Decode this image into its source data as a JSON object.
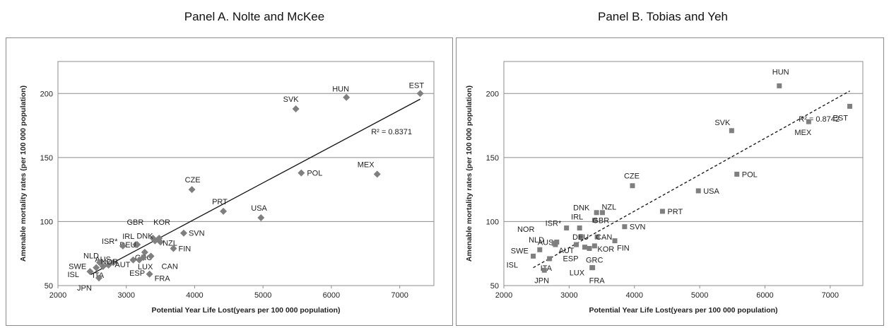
{
  "chart_data": [
    {
      "type": "scatter",
      "title": "Panel A. Nolte and McKee",
      "xlabel": "Potential Year Life Lost(years per 100 000 population)",
      "ylabel": "Amenable mortality rates (per 100 000 population)",
      "xlim": [
        2000,
        7500
      ],
      "ylim": [
        50,
        225
      ],
      "xticks": [
        2000,
        3000,
        4000,
        5000,
        6000,
        7000
      ],
      "yticks": [
        50,
        100,
        150,
        200
      ],
      "grid": "horizontal",
      "marker": "diamond",
      "marker_color": "#7f7f7f",
      "r2_label": "R² = 0.8371",
      "trendline": {
        "style": "solid",
        "x": [
          2480,
          7300
        ],
        "y": [
          58.6,
          195.6
        ]
      },
      "points": [
        {
          "label": "EST",
          "x": 7300,
          "y": 200
        },
        {
          "label": "HUN",
          "x": 6220,
          "y": 197
        },
        {
          "label": "SVK",
          "x": 5480,
          "y": 188
        },
        {
          "label": "MEX",
          "x": 6670,
          "y": 137
        },
        {
          "label": "POL",
          "x": 5560,
          "y": 138
        },
        {
          "label": "CZE",
          "x": 3960,
          "y": 125
        },
        {
          "label": "PRT",
          "x": 4420,
          "y": 108
        },
        {
          "label": "USA",
          "x": 4970,
          "y": 103
        },
        {
          "label": "SVN",
          "x": 3840,
          "y": 91
        },
        {
          "label": "GBR",
          "x": 3390,
          "y": 87
        },
        {
          "label": "KOR",
          "x": 3480,
          "y": 87
        },
        {
          "label": "DNK",
          "x": 3420,
          "y": 85
        },
        {
          "label": "NZL",
          "x": 3500,
          "y": 84
        },
        {
          "label": "IRL",
          "x": 3160,
          "y": 82
        },
        {
          "label": "DEU",
          "x": 3140,
          "y": 82
        },
        {
          "label": "ISR*",
          "x": 2950,
          "y": 81
        },
        {
          "label": "FIN",
          "x": 3690,
          "y": 79
        },
        {
          "label": "GRC",
          "x": 3270,
          "y": 76
        },
        {
          "label": "CAN",
          "x": 3360,
          "y": 73
        },
        {
          "label": "LUX",
          "x": 3250,
          "y": 72
        },
        {
          "label": "AUT",
          "x": 3100,
          "y": 70
        },
        {
          "label": "ESP",
          "x": 3190,
          "y": 70
        },
        {
          "label": "FRA",
          "x": 3340,
          "y": 59
        },
        {
          "label": "AUS",
          "x": 2810,
          "y": 68
        },
        {
          "label": "NLD",
          "x": 2610,
          "y": 68
        },
        {
          "label": "NOR",
          "x": 2740,
          "y": 66
        },
        {
          "label": "SWE",
          "x": 2560,
          "y": 64
        },
        {
          "label": "ITA",
          "x": 2660,
          "y": 65
        },
        {
          "label": "ISL",
          "x": 2470,
          "y": 61
        },
        {
          "label": "JPN",
          "x": 2600,
          "y": 56
        }
      ]
    },
    {
      "type": "scatter",
      "title": "Panel B. Tobias and Yeh",
      "xlabel": "Potential Year Life Lost(years per 100 000 population)",
      "ylabel": "Amenable mortality rates (per 100 000 population)",
      "xlim": [
        2000,
        7500
      ],
      "ylim": [
        50,
        225
      ],
      "xticks": [
        2000,
        3000,
        4000,
        5000,
        6000,
        7000
      ],
      "yticks": [
        50,
        100,
        150,
        200
      ],
      "grid": "horizontal",
      "marker": "square",
      "marker_color": "#7f7f7f",
      "r2_label": "R² = 0.8742",
      "trendline": {
        "style": "dashed",
        "x": [
          2450,
          7300
        ],
        "y": [
          64,
          202
        ]
      },
      "points": [
        {
          "label": "HUN",
          "x": 6220,
          "y": 206
        },
        {
          "label": "EST",
          "x": 7300,
          "y": 190
        },
        {
          "label": "SVK",
          "x": 5490,
          "y": 171
        },
        {
          "label": "MEX",
          "x": 6670,
          "y": 178
        },
        {
          "label": "POL",
          "x": 5570,
          "y": 137
        },
        {
          "label": "CZE",
          "x": 3970,
          "y": 128
        },
        {
          "label": "USA",
          "x": 4980,
          "y": 124
        },
        {
          "label": "PRT",
          "x": 4430,
          "y": 108
        },
        {
          "label": "DNK",
          "x": 3420,
          "y": 107
        },
        {
          "label": "NZL",
          "x": 3510,
          "y": 107
        },
        {
          "label": "GBR",
          "x": 3390,
          "y": 101
        },
        {
          "label": "SVN",
          "x": 3850,
          "y": 96
        },
        {
          "label": "ISR*",
          "x": 2960,
          "y": 95
        },
        {
          "label": "IRL",
          "x": 3160,
          "y": 95
        },
        {
          "label": "DEU",
          "x": 3180,
          "y": 88
        },
        {
          "label": "CAN",
          "x": 3430,
          "y": 88
        },
        {
          "label": "FIN",
          "x": 3700,
          "y": 85
        },
        {
          "label": "AUS",
          "x": 2810,
          "y": 84
        },
        {
          "label": "NOR",
          "x": 2790,
          "y": 82
        },
        {
          "label": "NLD",
          "x": 2770,
          "y": 83
        },
        {
          "label": "AUT",
          "x": 3110,
          "y": 82
        },
        {
          "label": "KOR",
          "x": 3390,
          "y": 81
        },
        {
          "label": "ESP",
          "x": 3240,
          "y": 80
        },
        {
          "label": "GRC",
          "x": 3310,
          "y": 79
        },
        {
          "label": "SWE",
          "x": 2550,
          "y": 78
        },
        {
          "label": "ISL",
          "x": 2450,
          "y": 73
        },
        {
          "label": "ITA",
          "x": 2700,
          "y": 71
        },
        {
          "label": "LUX",
          "x": 3350,
          "y": 64
        },
        {
          "label": "FRA",
          "x": 3360,
          "y": 64
        },
        {
          "label": "JPN",
          "x": 2620,
          "y": 62
        }
      ]
    }
  ]
}
